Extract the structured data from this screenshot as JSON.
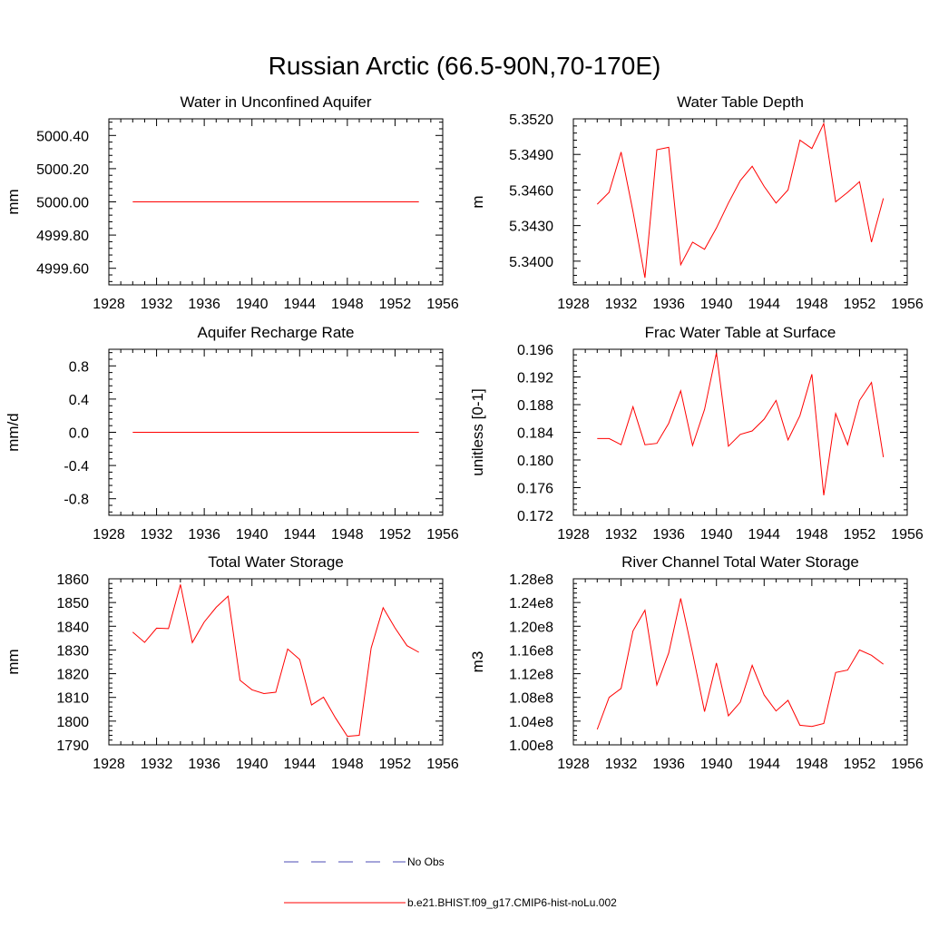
{
  "figure": {
    "title": "Russian Arctic (66.5-90N,70-170E)"
  },
  "legend": {
    "entries": [
      {
        "label": "No Obs",
        "color": "#4b4bb4",
        "style": "dashed"
      },
      {
        "label": "b.e21.BHIST.f09_g17.CMIP6-hist-noLu.002",
        "color": "#ff0000",
        "style": "solid"
      }
    ]
  },
  "chart_data": [
    {
      "type": "line",
      "title": "Water in Unconfined Aquifer",
      "ylabel": "mm",
      "xlim": [
        1928,
        1956
      ],
      "xticks": [
        "1928",
        "1932",
        "1936",
        "1940",
        "1944",
        "1948",
        "1952",
        "1956"
      ],
      "ylim": [
        4999.5,
        5000.5
      ],
      "yticks": [
        4999.6,
        4999.8,
        5000.0,
        5000.2,
        5000.4
      ],
      "ytick_labels": [
        "4999.60",
        "4999.80",
        "5000.00",
        "5000.20",
        "5000.40"
      ],
      "series": [
        {
          "color": "#ff0000",
          "x": [
            1930,
            1931,
            1932,
            1933,
            1934,
            1935,
            1936,
            1937,
            1938,
            1939,
            1940,
            1941,
            1942,
            1943,
            1944,
            1945,
            1946,
            1947,
            1948,
            1949,
            1950,
            1951,
            1952,
            1953,
            1954
          ],
          "y": [
            5000,
            5000,
            5000,
            5000,
            5000,
            5000,
            5000,
            5000,
            5000,
            5000,
            5000,
            5000,
            5000,
            5000,
            5000,
            5000,
            5000,
            5000,
            5000,
            5000,
            5000,
            5000,
            5000,
            5000,
            5000
          ]
        }
      ]
    },
    {
      "type": "line",
      "title": "Water Table Depth",
      "ylabel": "m",
      "xlim": [
        1928,
        1956
      ],
      "xticks": [
        "1928",
        "1932",
        "1936",
        "1940",
        "1944",
        "1948",
        "1952",
        "1956"
      ],
      "ylim": [
        5.338,
        5.352
      ],
      "yticks": [
        5.34,
        5.343,
        5.346,
        5.349,
        5.352
      ],
      "ytick_labels": [
        "5.3400",
        "5.3430",
        "5.3460",
        "5.3490",
        "5.3520"
      ],
      "series": [
        {
          "color": "#ff0000",
          "x": [
            1930,
            1931,
            1932,
            1933,
            1934,
            1935,
            1936,
            1937,
            1938,
            1939,
            1940,
            1941,
            1942,
            1943,
            1944,
            1945,
            1946,
            1947,
            1948,
            1949,
            1950,
            1951,
            1952,
            1953,
            1954
          ],
          "y": [
            5.3448,
            5.3458,
            5.3492,
            5.3442,
            5.3386,
            5.3494,
            5.3496,
            5.3397,
            5.3416,
            5.341,
            5.3428,
            5.3449,
            5.3468,
            5.348,
            5.3463,
            5.3449,
            5.346,
            5.3502,
            5.3495,
            5.3516,
            5.345,
            5.3458,
            5.3467,
            5.3416,
            5.3453
          ]
        }
      ]
    },
    {
      "type": "line",
      "title": "Aquifer Recharge Rate",
      "ylabel": "mm/d",
      "xlim": [
        1928,
        1956
      ],
      "xticks": [
        "1928",
        "1932",
        "1936",
        "1940",
        "1944",
        "1948",
        "1952",
        "1956"
      ],
      "ylim": [
        -1.0,
        1.0
      ],
      "yticks": [
        -0.8,
        -0.4,
        0.0,
        0.4,
        0.8
      ],
      "ytick_labels": [
        "-0.8",
        "-0.4",
        "0.0",
        "0.4",
        "0.8"
      ],
      "series": [
        {
          "color": "#ff0000",
          "x": [
            1930,
            1931,
            1932,
            1933,
            1934,
            1935,
            1936,
            1937,
            1938,
            1939,
            1940,
            1941,
            1942,
            1943,
            1944,
            1945,
            1946,
            1947,
            1948,
            1949,
            1950,
            1951,
            1952,
            1953,
            1954
          ],
          "y": [
            0,
            0,
            0,
            0,
            0,
            0,
            0,
            0,
            0,
            0,
            0,
            0,
            0,
            0,
            0,
            0,
            0,
            0,
            0,
            0,
            0,
            0,
            0,
            0,
            0
          ]
        }
      ]
    },
    {
      "type": "line",
      "title": "Frac Water Table at Surface",
      "ylabel": "unitless [0-1]",
      "xlim": [
        1928,
        1956
      ],
      "xticks": [
        "1928",
        "1932",
        "1936",
        "1940",
        "1944",
        "1948",
        "1952",
        "1956"
      ],
      "ylim": [
        0.172,
        0.196
      ],
      "yticks": [
        0.172,
        0.176,
        0.18,
        0.184,
        0.188,
        0.192,
        0.196
      ],
      "ytick_labels": [
        "0.172",
        "0.176",
        "0.180",
        "0.184",
        "0.188",
        "0.192",
        "0.196"
      ],
      "series": [
        {
          "color": "#ff0000",
          "x": [
            1930,
            1931,
            1932,
            1933,
            1934,
            1935,
            1936,
            1937,
            1938,
            1939,
            1940,
            1941,
            1942,
            1943,
            1944,
            1945,
            1946,
            1947,
            1948,
            1949,
            1950,
            1951,
            1952,
            1953,
            1954
          ],
          "y": [
            0.1831,
            0.1831,
            0.1822,
            0.1877,
            0.1822,
            0.1824,
            0.1853,
            0.19,
            0.1821,
            0.1873,
            0.1955,
            0.182,
            0.1837,
            0.1842,
            0.1859,
            0.1886,
            0.1829,
            0.1864,
            0.1924,
            0.1749,
            0.1867,
            0.1822,
            0.1886,
            0.1912,
            0.1804
          ]
        }
      ]
    },
    {
      "type": "line",
      "title": "Total Water Storage",
      "ylabel": "mm",
      "xlim": [
        1928,
        1956
      ],
      "xticks": [
        "1928",
        "1932",
        "1936",
        "1940",
        "1944",
        "1948",
        "1952",
        "1956"
      ],
      "ylim": [
        1790,
        1860
      ],
      "yticks": [
        1790,
        1800,
        1810,
        1820,
        1830,
        1840,
        1850,
        1860
      ],
      "ytick_labels": [
        "1790",
        "1800",
        "1810",
        "1820",
        "1830",
        "1840",
        "1850",
        "1860"
      ],
      "series": [
        {
          "color": "#ff0000",
          "x": [
            1930,
            1931,
            1932,
            1933,
            1934,
            1935,
            1936,
            1937,
            1938,
            1939,
            1940,
            1941,
            1942,
            1943,
            1944,
            1945,
            1946,
            1947,
            1948,
            1949,
            1950,
            1951,
            1952,
            1953,
            1954
          ],
          "y": [
            1837.5,
            1833.2,
            1839.2,
            1839.0,
            1857.6,
            1833.1,
            1841.8,
            1848.0,
            1852.7,
            1817.2,
            1813.2,
            1811.6,
            1812.2,
            1830.4,
            1826.0,
            1806.8,
            1810.1,
            1801.4,
            1793.6,
            1794.0,
            1830.8,
            1847.8,
            1839.3,
            1831.8,
            1829.0
          ]
        }
      ]
    },
    {
      "type": "line",
      "title": "River Channel Total Water Storage",
      "ylabel": "m3",
      "xlim": [
        1928,
        1956
      ],
      "xticks": [
        "1928",
        "1932",
        "1936",
        "1940",
        "1944",
        "1948",
        "1952",
        "1956"
      ],
      "ylim": [
        100000000,
        128000000
      ],
      "yticks": [
        100000000,
        104000000,
        108000000,
        112000000,
        116000000,
        120000000,
        124000000,
        128000000
      ],
      "ytick_labels": [
        "1.00e8",
        "1.04e8",
        "1.08e8",
        "1.12e8",
        "1.16e8",
        "1.20e8",
        "1.24e8",
        "1.28e8"
      ],
      "series": [
        {
          "color": "#ff0000",
          "x": [
            1930,
            1931,
            1932,
            1933,
            1934,
            1935,
            1936,
            1937,
            1938,
            1939,
            1940,
            1941,
            1942,
            1943,
            1944,
            1945,
            1946,
            1947,
            1948,
            1949,
            1950,
            1951,
            1952,
            1953,
            1954
          ],
          "y": [
            102600000,
            108000000,
            109500000,
            119200000,
            122700000,
            110100000,
            115500000,
            124700000,
            115500000,
            105600000,
            113800000,
            104900000,
            107200000,
            113400000,
            108400000,
            105700000,
            107500000,
            103300000,
            103100000,
            103600000,
            112200000,
            112600000,
            116000000,
            115100000,
            113600000
          ]
        }
      ]
    }
  ]
}
